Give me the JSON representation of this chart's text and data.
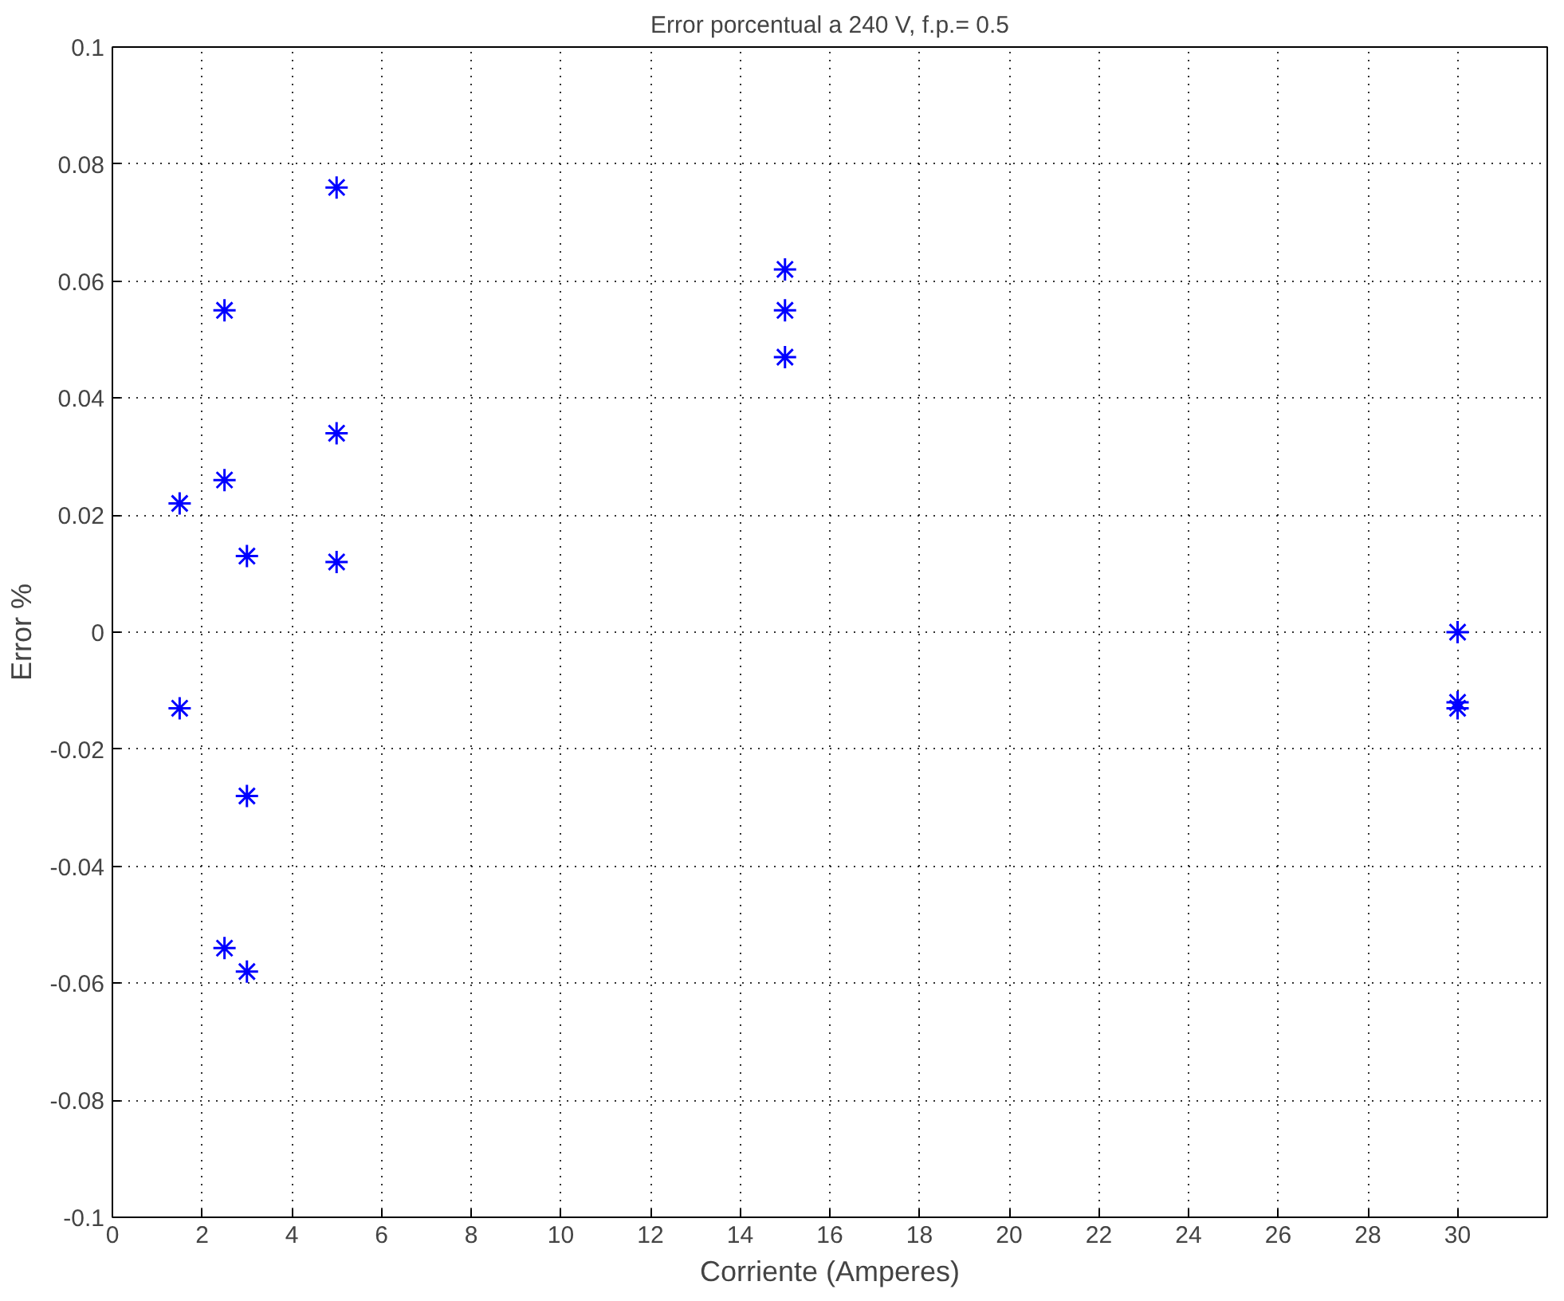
{
  "chart_data": {
    "type": "scatter",
    "title": "Error porcentual a 240 V, f.p.= 0.5",
    "xlabel": "Corriente (Amperes)",
    "ylabel": "Error %",
    "x": [
      1.5,
      1.5,
      2.5,
      2.5,
      2.5,
      3,
      3,
      3,
      5,
      5,
      5,
      15,
      15,
      15,
      30,
      30,
      30
    ],
    "series": [
      {
        "color": "#0000ff",
        "values": [
          0.022,
          -0.013,
          0.055,
          0.026,
          -0.054,
          0.013,
          -0.028,
          -0.058,
          0.076,
          0.034,
          0.012,
          0.062,
          0.055,
          0.047,
          0,
          -0.012,
          -0.013
        ]
      }
    ],
    "xlim": [
      0,
      32
    ],
    "xticks": [
      0,
      2,
      4,
      6,
      8,
      10,
      12,
      14,
      16,
      18,
      20,
      22,
      24,
      26,
      28,
      30
    ],
    "ylim": [
      -0.1,
      0.1
    ],
    "yticks": [
      -0.1,
      -0.08,
      -0.06,
      -0.04,
      -0.02,
      0,
      0.02,
      0.04,
      0.06,
      0.08,
      0.1
    ],
    "grid": true,
    "marker": "cross"
  }
}
